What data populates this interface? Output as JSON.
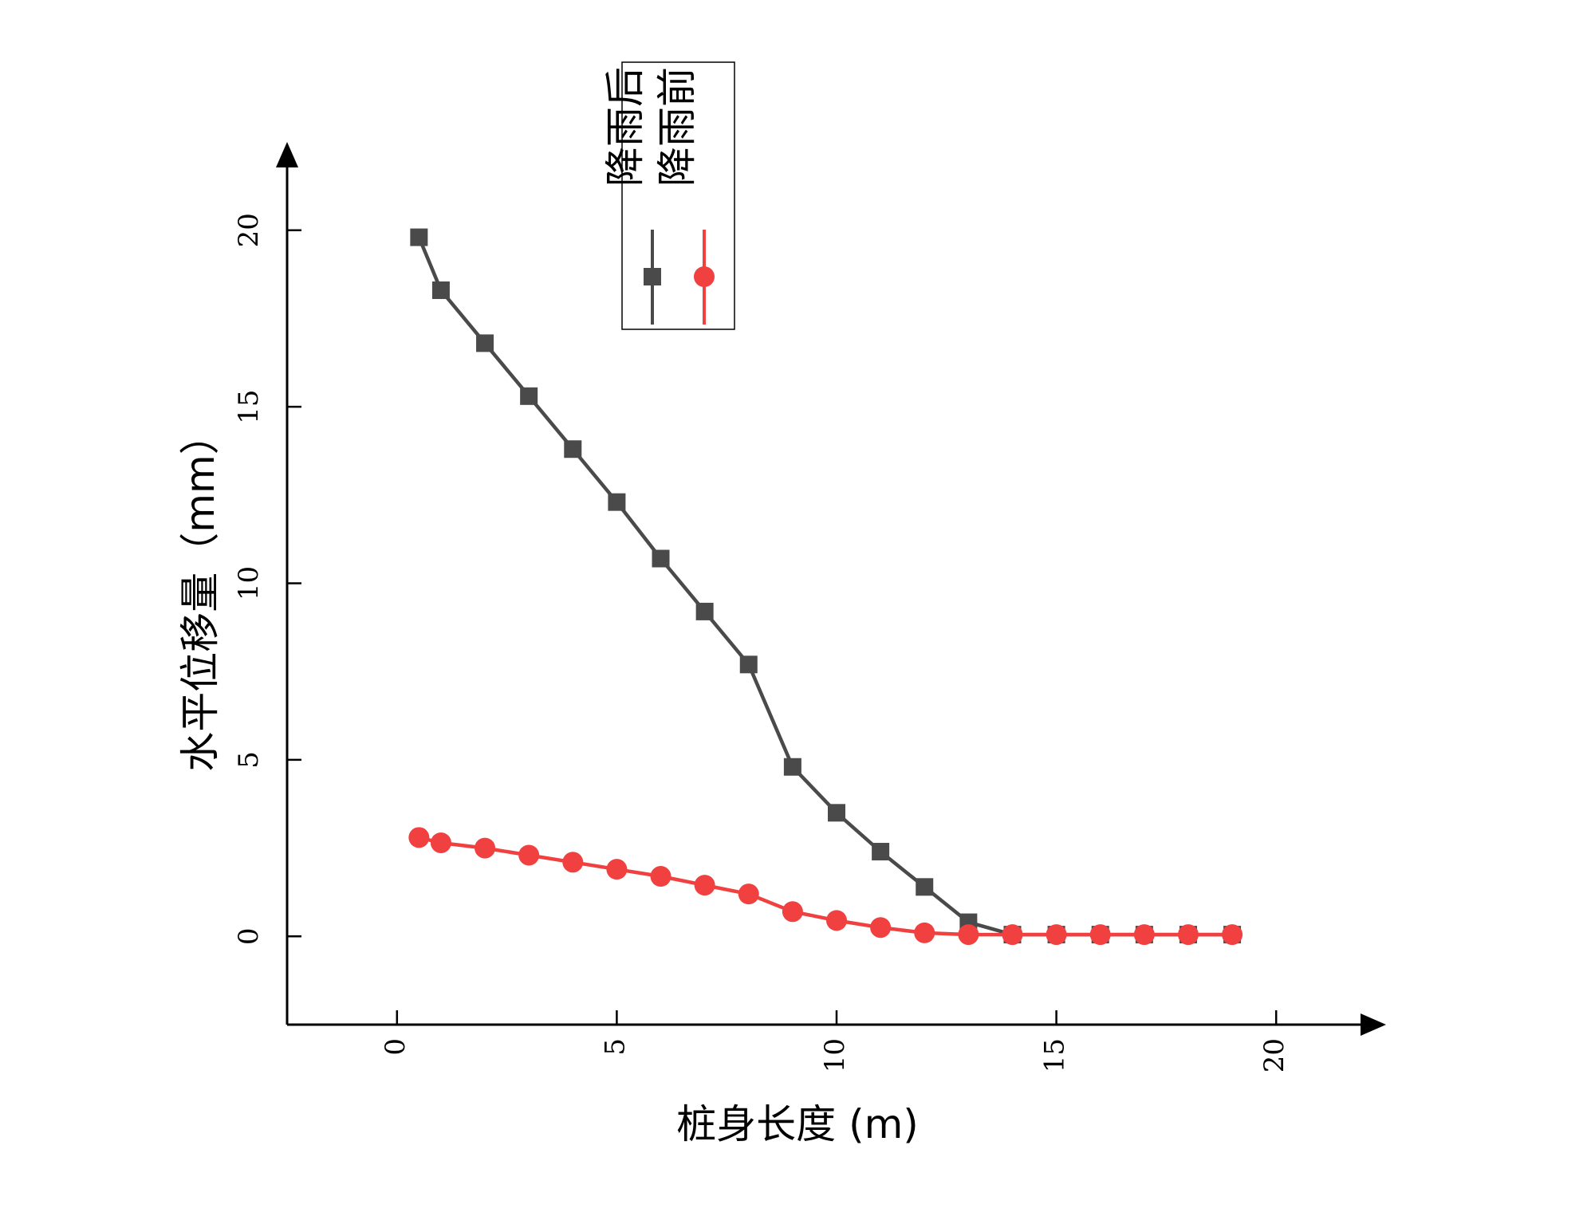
{
  "chart_data": {
    "type": "line",
    "xlabel": "桩身长度 (m)",
    "ylabel": "水平位移量（mm）",
    "xlim": [
      -2.5,
      22.5
    ],
    "ylim": [
      -2.5,
      22.5
    ],
    "xticks": [
      0,
      5,
      10,
      15,
      20
    ],
    "yticks": [
      0,
      5,
      10,
      15,
      20
    ],
    "xtick_labels": [
      "0",
      "5",
      "10",
      "15",
      "20"
    ],
    "ytick_labels": [
      "0",
      "5",
      "10",
      "15",
      "20"
    ],
    "grid": false,
    "legend_position": "top-center",
    "series": [
      {
        "name": "降雨后",
        "marker": "square",
        "color": "#4a4a4a",
        "x": [
          0.5,
          1,
          2,
          3,
          4,
          5,
          6,
          7,
          8,
          9,
          10,
          11,
          12,
          13,
          14,
          15,
          16,
          17,
          18,
          19
        ],
        "y": [
          19.8,
          18.3,
          16.8,
          15.3,
          13.8,
          12.3,
          10.7,
          9.2,
          7.7,
          4.8,
          3.5,
          2.4,
          1.4,
          0.4,
          0.05,
          0.05,
          0.05,
          0.05,
          0.05,
          0.05
        ]
      },
      {
        "name": "降雨前",
        "marker": "circle",
        "color": "#f04040",
        "x": [
          0.5,
          1,
          2,
          3,
          4,
          5,
          6,
          7,
          8,
          9,
          10,
          11,
          12,
          13,
          14,
          15,
          16,
          17,
          18,
          19
        ],
        "y": [
          2.8,
          2.65,
          2.5,
          2.3,
          2.1,
          1.9,
          1.7,
          1.45,
          1.2,
          0.7,
          0.45,
          0.25,
          0.1,
          0.05,
          0.05,
          0.05,
          0.05,
          0.05,
          0.05,
          0.05
        ]
      }
    ]
  }
}
